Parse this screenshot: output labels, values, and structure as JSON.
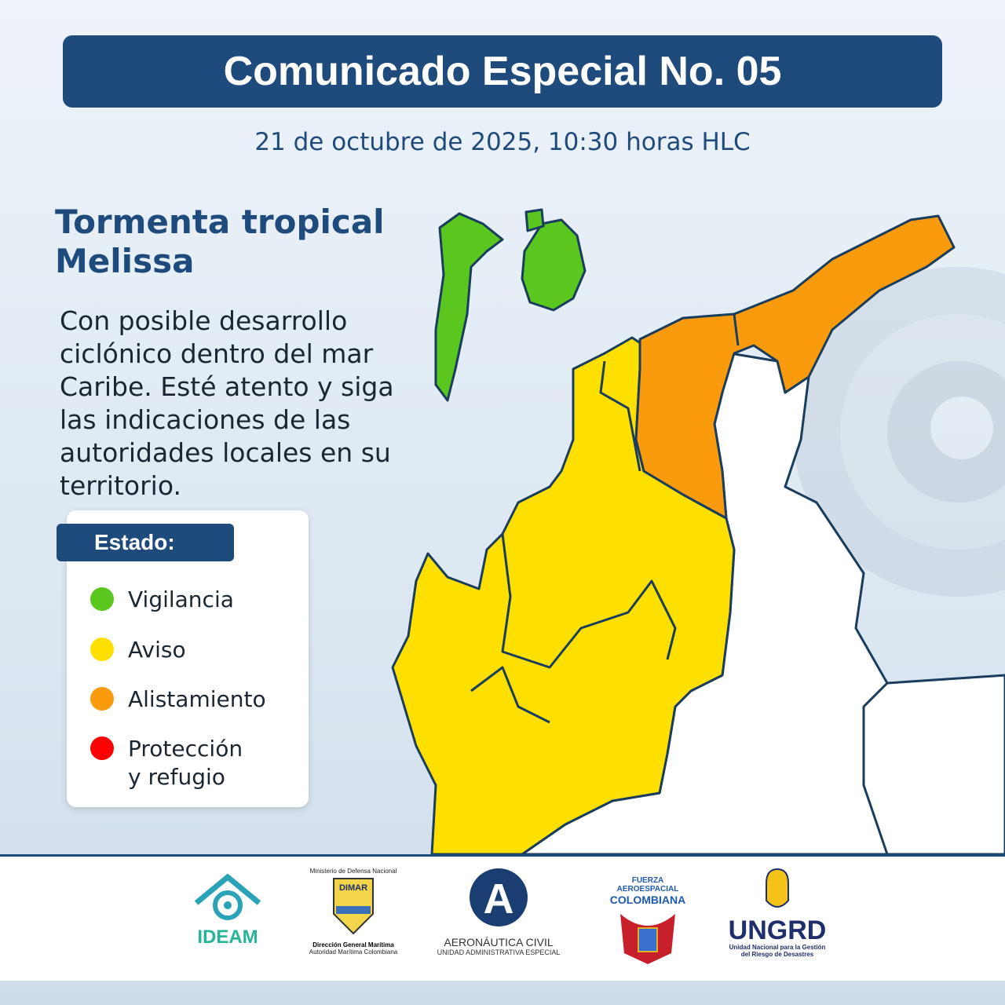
{
  "header": {
    "title": "Comunicado Especial No. 05"
  },
  "date": "21 de octubre de 2025, 10:30 horas HLC",
  "storm": {
    "line1": "Tormenta tropical",
    "line2": "Melissa"
  },
  "description": "Con posible desarrollo ciclónico dentro del mar Caribe. Esté atento y siga las indicaciones de las autoridades locales en su territorio.",
  "legend": {
    "title": "Estado:",
    "items": [
      {
        "label": "Vigilancia",
        "color": "#5ac71e"
      },
      {
        "label": "Aviso",
        "color": "#fde000"
      },
      {
        "label": "Alistamiento",
        "color": "#f99b0c"
      },
      {
        "label": "Protección",
        "label2": "y refugio",
        "color": "#ff0000"
      }
    ]
  },
  "map": {
    "colors": {
      "vigilancia": "#5ac71e",
      "aviso": "#fde000",
      "alistamiento": "#f99b0c",
      "none": "#ffffff",
      "border": "#1a3d5e"
    }
  },
  "logos": [
    {
      "name": "IDEAM"
    },
    {
      "top": "Ministerio de Defensa Nacional",
      "name": "DIMAR",
      "line1": "Dirección General Marítima",
      "line2": "Autoridad Marítima Colombiana"
    },
    {
      "name": "AERONÁUTICA CIVIL",
      "line1": "UNIDAD ADMINISTRATIVA ESPECIAL"
    },
    {
      "top": "FUERZA AEROESPACIAL",
      "name": "COLOMBIANA"
    },
    {
      "name": "UNGRD",
      "line1": "Unidad Nacional para la Gestión",
      "line2": "del Riesgo de Desastres"
    }
  ]
}
